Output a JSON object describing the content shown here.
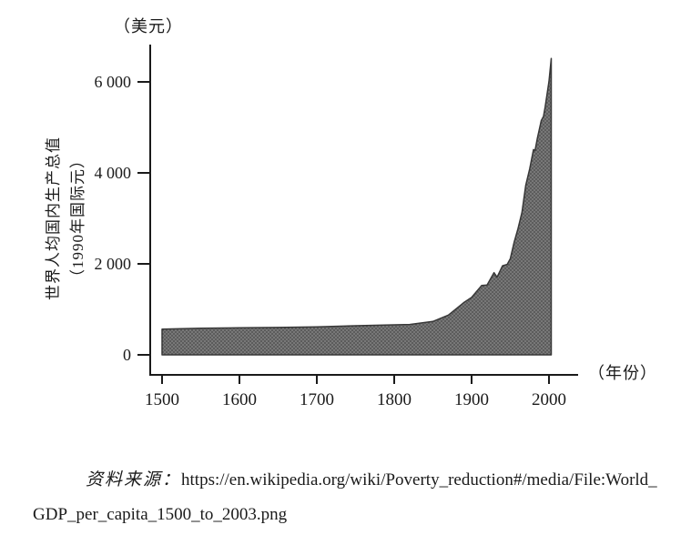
{
  "chart_data": {
    "type": "area",
    "title": "",
    "y_unit_label": "（美元）",
    "x_unit_label": "（年份）",
    "ylabel_line1": "世界人均国内生产总值",
    "ylabel_line2": "（1990年国际元）",
    "xlim": [
      1500,
      2003
    ],
    "ylim": [
      0,
      6600
    ],
    "grid": false,
    "legend": "none",
    "x_ticks": [
      {
        "label": "1500",
        "value": 1500
      },
      {
        "label": "1600",
        "value": 1600
      },
      {
        "label": "1700",
        "value": 1700
      },
      {
        "label": "1800",
        "value": 1800
      },
      {
        "label": "1900",
        "value": 1900
      },
      {
        "label": "2000",
        "value": 2000
      }
    ],
    "y_ticks": [
      {
        "label": "6 000",
        "value": 6000
      },
      {
        "label": "4 000",
        "value": 4000
      },
      {
        "label": "2 000",
        "value": 2000
      },
      {
        "label": "0",
        "value": 0
      }
    ],
    "series": [
      {
        "name": "世界人均国内生产总值（1990年国际元）",
        "points": [
          [
            1500,
            566
          ],
          [
            1550,
            585
          ],
          [
            1600,
            596
          ],
          [
            1650,
            603
          ],
          [
            1700,
            615
          ],
          [
            1750,
            640
          ],
          [
            1800,
            660
          ],
          [
            1820,
            667
          ],
          [
            1850,
            735
          ],
          [
            1870,
            875
          ],
          [
            1890,
            1150
          ],
          [
            1900,
            1262
          ],
          [
            1913,
            1525
          ],
          [
            1920,
            1534
          ],
          [
            1929,
            1806
          ],
          [
            1933,
            1708
          ],
          [
            1940,
            1958
          ],
          [
            1946,
            1988
          ],
          [
            1950,
            2111
          ],
          [
            1955,
            2482
          ],
          [
            1960,
            2777
          ],
          [
            1965,
            3128
          ],
          [
            1970,
            3729
          ],
          [
            1975,
            4086
          ],
          [
            1980,
            4511
          ],
          [
            1982,
            4492
          ],
          [
            1985,
            4768
          ],
          [
            1990,
            5149
          ],
          [
            1993,
            5245
          ],
          [
            1995,
            5450
          ],
          [
            2000,
            6012
          ],
          [
            2003,
            6516
          ]
        ]
      }
    ],
    "fill_base_color": "#787878",
    "fill_dot_color": "#474747",
    "outline_color": "#383838",
    "axis_color": "#1a1a1a"
  },
  "source": {
    "prefix": "资料来源：",
    "line1": "https://en.wikipedia.org/wiki/Poverty_reduction#/media/File:World_",
    "line2": "GDP_per_capita_1500_to_2003.png"
  }
}
